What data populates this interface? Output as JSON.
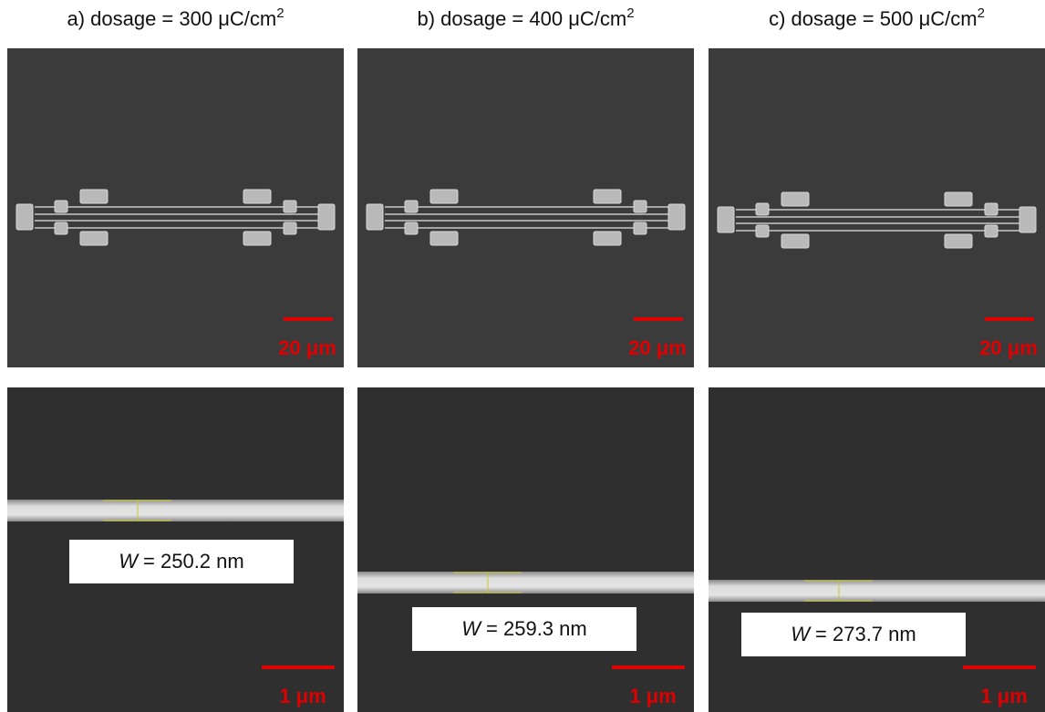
{
  "panels": [
    {
      "title": "a) dosage = 300 μC/cm",
      "title_superscript": "2",
      "overview_scale": "20 μm",
      "detail_scale": "1 μm",
      "width_symbol": "W",
      "width_value": "= 250.2 nm"
    },
    {
      "title": "b) dosage = 400 μC/cm",
      "title_superscript": "2",
      "overview_scale": "20 μm",
      "detail_scale": "1 μm",
      "width_symbol": "W",
      "width_value": "= 259.3 nm"
    },
    {
      "title": "c) dosage = 500 μC/cm",
      "title_superscript": "2",
      "overview_scale": "20 μm",
      "detail_scale": "1 μm",
      "width_symbol": "W",
      "width_value": "= 273.7 nm"
    }
  ]
}
